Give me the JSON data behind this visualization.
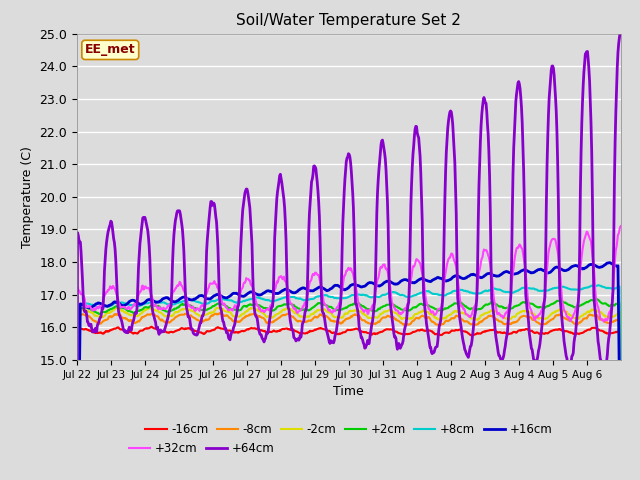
{
  "title": "Soil/Water Temperature Set 2",
  "xlabel": "Time",
  "ylabel": "Temperature (C)",
  "ylim": [
    15.0,
    25.0
  ],
  "yticks": [
    15.0,
    16.0,
    17.0,
    18.0,
    19.0,
    20.0,
    21.0,
    22.0,
    23.0,
    24.0,
    25.0
  ],
  "background_color": "#dcdcdc",
  "annotation_text": "EE_met",
  "annotation_bg": "#ffffcc",
  "annotation_border": "#cc8800",
  "annotation_text_color": "#880000",
  "legend_labels": [
    "-16cm",
    "-8cm",
    "-2cm",
    "+2cm",
    "+8cm",
    "+16cm",
    "+32cm",
    "+64cm"
  ],
  "legend_colors": [
    "#ff0000",
    "#ff8800",
    "#dddd00",
    "#00cc00",
    "#00cccc",
    "#0000cc",
    "#ff44ff",
    "#8800cc"
  ],
  "legend_lws": [
    1.5,
    1.5,
    1.5,
    1.5,
    1.5,
    2.0,
    1.5,
    2.0
  ],
  "xtick_labels": [
    "Jul 22",
    "Jul 23",
    "Jul 24",
    "Jul 25",
    "Jul 26",
    "Jul 27",
    "Jul 28",
    "Jul 29",
    "Jul 30",
    "Jul 31",
    "Aug 1",
    "Aug 2",
    "Aug 3",
    "Aug 4",
    "Aug 5",
    "Aug 6"
  ],
  "n_days": 16,
  "pts_per_day": 48
}
